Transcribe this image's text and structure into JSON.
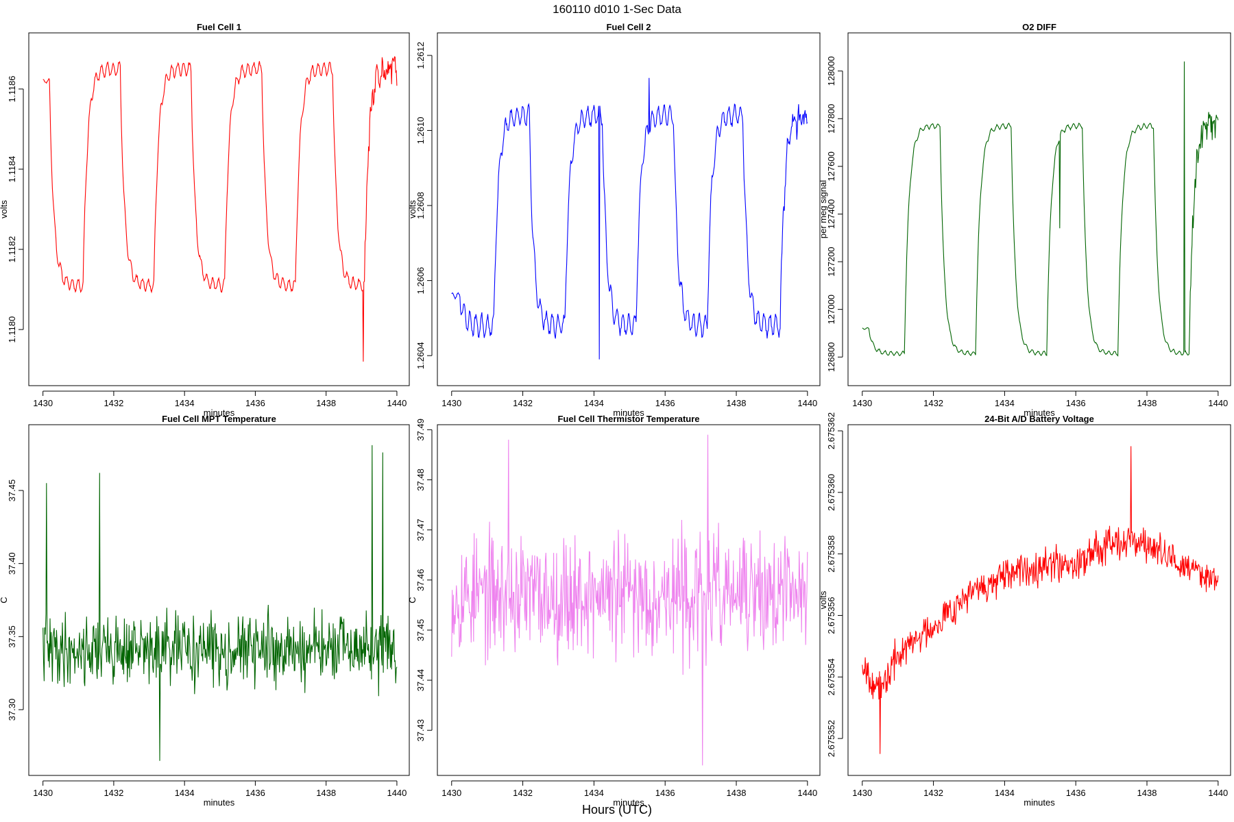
{
  "page": {
    "title": "160110   d010   1-Sec Data",
    "bottom_label": "Hours (UTC)"
  },
  "chart_data": [
    {
      "type": "line",
      "title": "Fuel Cell 1",
      "xlabel": "minutes",
      "ylabel": "volts",
      "color": "#ff0000",
      "xlim": [
        1429.6,
        1440.35
      ],
      "ylim": [
        1.11786,
        1.11874
      ],
      "xticks": [
        1430,
        1432,
        1434,
        1436,
        1438,
        1440
      ],
      "yticks": [
        1.118,
        1.1182,
        1.1184,
        1.1186
      ],
      "ytick_labels": [
        "1.1180",
        "1.1182",
        "1.1184",
        "1.1186"
      ],
      "pattern": "square",
      "low": 1.11811,
      "high": 1.11865,
      "osc_low": 1.4e-05,
      "osc_high": 1.6e-05,
      "transitions": [
        1430.2,
        1431.15,
        1432.2,
        1433.15,
        1434.2,
        1435.15,
        1436.2,
        1437.15,
        1438.2,
        1439.1
      ],
      "start_value": 1.11862,
      "tail_noise": 3e-05,
      "spikes": [
        [
          1439.05,
          1.11792
        ]
      ],
      "seed": 11
    },
    {
      "type": "line",
      "title": "Fuel Cell 2",
      "xlabel": "minutes",
      "ylabel": "volts",
      "color": "#0000ff",
      "xlim": [
        1429.6,
        1440.35
      ],
      "ylim": [
        1.26032,
        1.26126
      ],
      "xticks": [
        1430,
        1432,
        1434,
        1436,
        1438,
        1440
      ],
      "yticks": [
        1.2604,
        1.2606,
        1.2608,
        1.261,
        1.2612
      ],
      "ytick_labels": [
        "1.2604",
        "1.2606",
        "1.2608",
        "1.2610",
        "1.2612"
      ],
      "pattern": "square",
      "low": 1.26048,
      "high": 1.26104,
      "osc_low": 2.8e-05,
      "osc_high": 2.5e-05,
      "transitions": [
        1430.25,
        1431.2,
        1432.2,
        1433.2,
        1434.25,
        1435.2,
        1436.25,
        1437.2,
        1438.2,
        1439.25
      ],
      "start_value": 1.26056,
      "tail_noise": 3e-05,
      "spikes": [
        [
          1435.55,
          1.26114
        ],
        [
          1434.15,
          1.26039
        ]
      ],
      "seed": 23
    },
    {
      "type": "line",
      "title": "O2 DIFF",
      "xlabel": "minutes",
      "ylabel": "per meg signal",
      "color": "#006400",
      "xlim": [
        1429.6,
        1440.35
      ],
      "ylim": [
        126680,
        128160
      ],
      "xticks": [
        1430,
        1432,
        1434,
        1436,
        1438,
        1440
      ],
      "yticks": [
        126800,
        127000,
        127200,
        127400,
        127600,
        127800,
        128000
      ],
      "ytick_labels": [
        "126800",
        "127000",
        "127200",
        "127400",
        "127600",
        "127800",
        "128000"
      ],
      "pattern": "square",
      "low": 126815,
      "high": 127770,
      "osc_low": 8,
      "osc_high": 10,
      "transitions": [
        1430.2,
        1431.2,
        1432.2,
        1433.2,
        1434.2,
        1435.2,
        1436.2,
        1437.2,
        1438.2,
        1439.2
      ],
      "start_value": 126920,
      "tail_noise": 60,
      "spikes": [
        [
          1435.55,
          127340
        ],
        [
          1439.05,
          128040
        ]
      ],
      "seed": 37
    },
    {
      "type": "line",
      "title": "Fuel Cell MPT Temperature",
      "xlabel": "minutes",
      "ylabel": "C",
      "color": "#006400",
      "xlim": [
        1429.6,
        1440.35
      ],
      "ylim": [
        37.255,
        37.495
      ],
      "xticks": [
        1430,
        1432,
        1434,
        1436,
        1438,
        1440
      ],
      "yticks": [
        37.3,
        37.35,
        37.4,
        37.45
      ],
      "ytick_labels": [
        "37.30",
        "37.35",
        "37.40",
        "37.45"
      ],
      "pattern": "noise",
      "mean": 37.341,
      "noise": 0.022,
      "spikes": [
        [
          1430.1,
          37.455
        ],
        [
          1431.6,
          37.462
        ],
        [
          1439.3,
          37.481
        ],
        [
          1439.6,
          37.476
        ],
        [
          1433.3,
          37.265
        ]
      ],
      "seed": 41
    },
    {
      "type": "line",
      "title": "Fuel Cell Thermistor Temperature",
      "xlabel": "minutes",
      "ylabel": "C",
      "color": "#ee82ee",
      "xlim": [
        1429.6,
        1440.35
      ],
      "ylim": [
        37.421,
        37.491
      ],
      "xticks": [
        1430,
        1432,
        1434,
        1436,
        1438,
        1440
      ],
      "yticks": [
        37.43,
        37.44,
        37.45,
        37.46,
        37.47,
        37.48,
        37.49
      ],
      "ytick_labels": [
        "37.43",
        "37.44",
        "37.45",
        "37.46",
        "37.47",
        "37.48",
        "37.49"
      ],
      "pattern": "noise",
      "mean": 37.457,
      "noise": 0.011,
      "spikes": [
        [
          1431.6,
          37.488
        ],
        [
          1437.2,
          37.489
        ],
        [
          1437.05,
          37.423
        ]
      ],
      "seed": 53
    },
    {
      "type": "line",
      "title": "24-Bit A/D Battery Voltage",
      "xlabel": "minutes",
      "ylabel": "volts",
      "color": "#ff0000",
      "xlim": [
        1429.6,
        1440.35
      ],
      "ylim": [
        2.6753508,
        2.6753622
      ],
      "xticks": [
        1430,
        1432,
        1434,
        1436,
        1438,
        1440
      ],
      "yticks": [
        2.675352,
        2.675354,
        2.675356,
        2.675358,
        2.67536,
        2.675362
      ],
      "ytick_labels": [
        "2.675352",
        "2.675354",
        "2.675356",
        "2.675358",
        "2.675360",
        "2.675362"
      ],
      "pattern": "trend",
      "trend": [
        [
          1430,
          2.6753545
        ],
        [
          1430.5,
          2.6753535
        ],
        [
          1431,
          2.6753547
        ],
        [
          1432,
          2.6753557
        ],
        [
          1433,
          2.6753567
        ],
        [
          1434,
          2.6753572
        ],
        [
          1435,
          2.6753577
        ],
        [
          1436,
          2.6753577
        ],
        [
          1437,
          2.6753585
        ],
        [
          1438,
          2.6753583
        ],
        [
          1439,
          2.6753576
        ],
        [
          1440,
          2.6753572
        ]
      ],
      "noise": 6e-07,
      "spikes": [
        [
          1430.5,
          2.6753515
        ],
        [
          1437.55,
          2.6753615
        ]
      ],
      "seed": 67
    }
  ]
}
